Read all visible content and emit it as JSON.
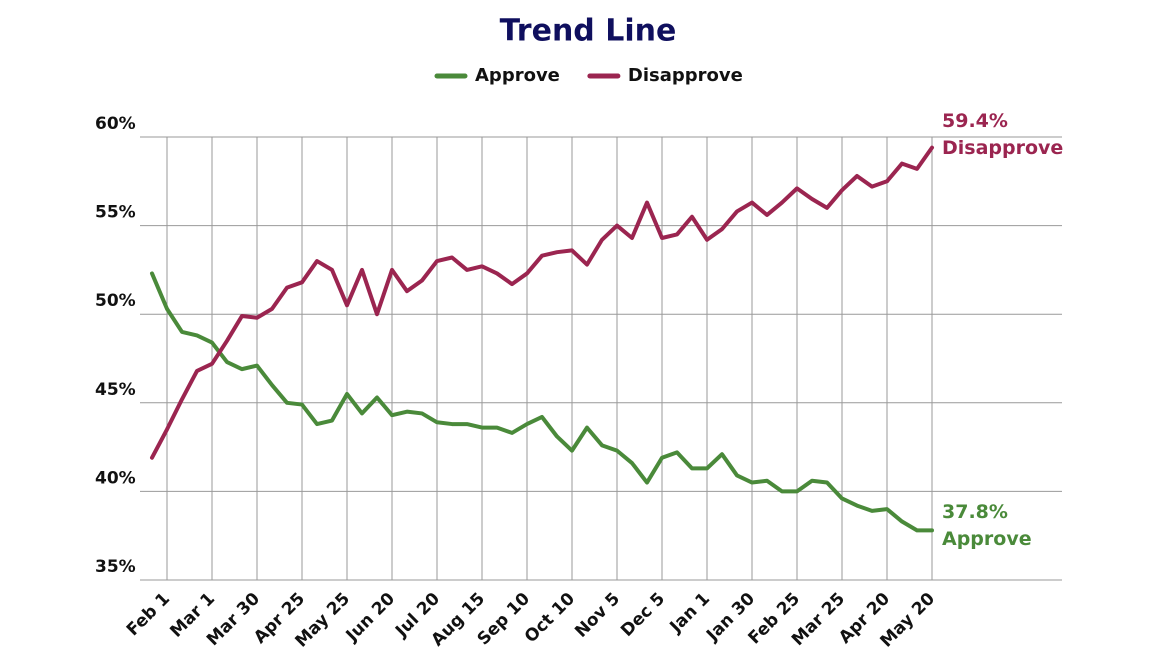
{
  "chart_data": {
    "type": "line",
    "title": "Trend Line",
    "categories": [
      null,
      "Feb 1",
      null,
      null,
      "Mar 1",
      null,
      null,
      "Mar 30",
      null,
      null,
      "Apr 25",
      null,
      null,
      "May 25",
      null,
      null,
      "Jun 20",
      null,
      null,
      "Jul 20",
      null,
      null,
      "Aug 15",
      null,
      null,
      "Sep 10",
      null,
      null,
      "Oct 10",
      null,
      null,
      "Nov 5",
      null,
      null,
      "Dec 5",
      null,
      null,
      "Jan 1",
      null,
      null,
      "Jan 30",
      null,
      null,
      "Feb 25",
      null,
      null,
      "Mar 25",
      null,
      null,
      "Apr 20",
      null,
      null,
      "May 20"
    ],
    "series": [
      {
        "name": "Approve",
        "color": "#4a8a3a",
        "end_label": "37.8%",
        "values": [
          52.3,
          50.3,
          49.0,
          48.8,
          48.4,
          47.3,
          46.9,
          47.1,
          46.0,
          45.0,
          44.9,
          43.8,
          44.0,
          45.5,
          44.4,
          45.3,
          44.3,
          44.5,
          44.4,
          43.9,
          43.8,
          43.8,
          43.6,
          43.6,
          43.3,
          43.8,
          44.2,
          43.1,
          42.3,
          43.6,
          42.6,
          42.3,
          41.6,
          40.5,
          41.9,
          42.2,
          41.3,
          41.3,
          42.1,
          40.9,
          40.5,
          40.6,
          40.0,
          40.0,
          40.6,
          40.5,
          39.6,
          39.2,
          38.9,
          39.0,
          38.3,
          37.8,
          37.8
        ]
      },
      {
        "name": "Disapprove",
        "color": "#9b2550",
        "end_label": "59.4%",
        "values": [
          41.9,
          43.5,
          45.2,
          46.8,
          47.2,
          48.5,
          49.9,
          49.8,
          50.3,
          51.5,
          51.8,
          53.0,
          52.5,
          50.5,
          52.5,
          50.0,
          52.5,
          51.3,
          51.9,
          53.0,
          53.2,
          52.5,
          52.7,
          52.3,
          51.7,
          52.3,
          53.3,
          53.5,
          53.6,
          52.8,
          54.2,
          55.0,
          54.3,
          56.3,
          54.3,
          54.5,
          55.5,
          54.2,
          54.8,
          55.8,
          56.3,
          55.6,
          56.3,
          57.1,
          56.5,
          56.0,
          57.0,
          57.8,
          57.2,
          57.5,
          58.5,
          58.2,
          59.4
        ]
      }
    ],
    "ylim": [
      35,
      60
    ],
    "yticks": [
      {
        "value": 35,
        "label": "35%"
      },
      {
        "value": 40,
        "label": "40%"
      },
      {
        "value": 45,
        "label": "45%"
      },
      {
        "value": 50,
        "label": "50%"
      },
      {
        "value": 55,
        "label": "55%"
      },
      {
        "value": 60,
        "label": "60%"
      }
    ],
    "grid": true,
    "legend": "top"
  }
}
